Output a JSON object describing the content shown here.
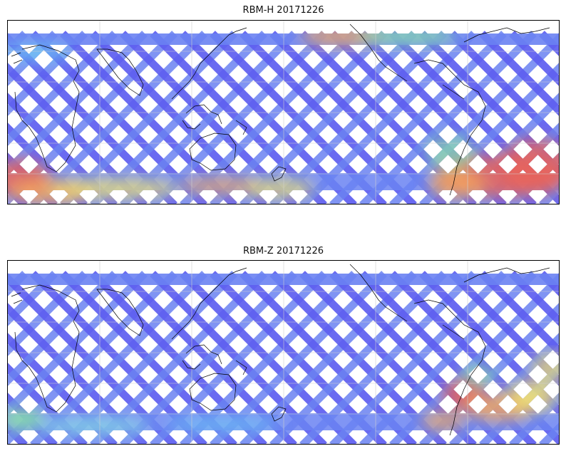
{
  "figure": {
    "panels": [
      {
        "id": "rbm-h",
        "title": "RBM-H 20171226"
      },
      {
        "id": "rbm-z",
        "title": "RBM-Z 20171226"
      }
    ]
  },
  "colors": {
    "blue_dark": "#5e5ef0",
    "blue_mid": "#6a82f2",
    "cyan": "#6ad7f3",
    "cyan_light": "#8ae8e0",
    "green": "#8ef09a",
    "yellow": "#f7e86a",
    "orange": "#f7a95a",
    "red": "#e8635a",
    "coast": "#000000",
    "grid": "#cfcfcf"
  }
}
